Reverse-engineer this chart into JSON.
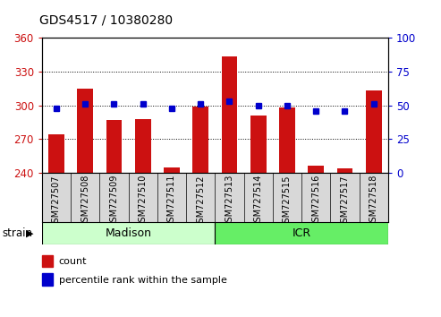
{
  "title": "GDS4517 / 10380280",
  "categories": [
    "GSM727507",
    "GSM727508",
    "GSM727509",
    "GSM727510",
    "GSM727511",
    "GSM727512",
    "GSM727513",
    "GSM727514",
    "GSM727515",
    "GSM727516",
    "GSM727517",
    "GSM727518"
  ],
  "counts": [
    274,
    315,
    287,
    288,
    245,
    299,
    344,
    291,
    298,
    246,
    244,
    313
  ],
  "percentiles": [
    48,
    51,
    51,
    51,
    48,
    51,
    53,
    50,
    50,
    46,
    46,
    51
  ],
  "ylim_left": [
    240,
    360
  ],
  "ylim_right": [
    0,
    100
  ],
  "yticks_left": [
    240,
    270,
    300,
    330,
    360
  ],
  "yticks_right": [
    0,
    25,
    50,
    75,
    100
  ],
  "bar_color": "#cc1111",
  "dot_color": "#0000cc",
  "madison_color": "#ccffcc",
  "icr_color": "#66ee66",
  "legend_count_label": "count",
  "legend_pct_label": "percentile rank within the sample",
  "strain_label": "strain",
  "axis_bg_color": "#d8d8d8",
  "white_bg": "#ffffff"
}
